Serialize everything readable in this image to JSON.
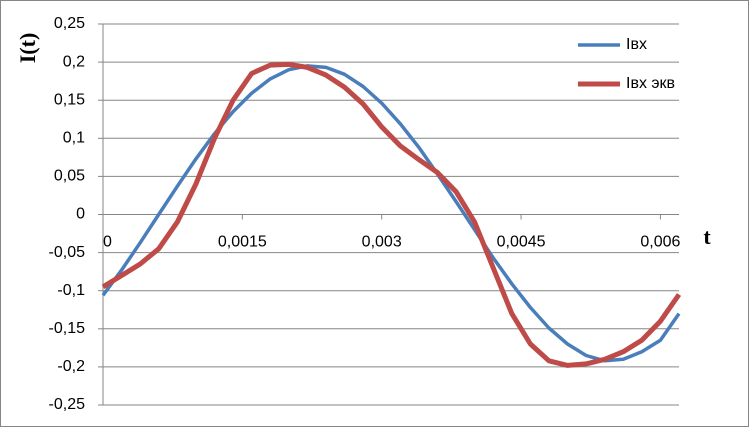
{
  "chart_data": {
    "type": "line",
    "y_label": "I(t)",
    "x_label": "t",
    "x": [
      0,
      0.0002,
      0.0004,
      0.0006,
      0.0008,
      0.001,
      0.0012,
      0.0014,
      0.0016,
      0.0018,
      0.002,
      0.0022,
      0.0024,
      0.0026,
      0.0028,
      0.003,
      0.0032,
      0.0034,
      0.0036,
      0.0038,
      0.004,
      0.0042,
      0.0044,
      0.0046,
      0.0048,
      0.005,
      0.0052,
      0.0054,
      0.0056,
      0.0058,
      0.006,
      0.0062
    ],
    "series": [
      {
        "name": "Iвх",
        "color": "#4a7ebb",
        "values": [
          -0.106,
          -0.073,
          -0.037,
          0,
          0.037,
          0.073,
          0.106,
          0.135,
          0.159,
          0.178,
          0.19,
          0.195,
          0.193,
          0.184,
          0.168,
          0.146,
          0.119,
          0.088,
          0.053,
          0.017,
          -0.02,
          -0.057,
          -0.091,
          -0.122,
          -0.149,
          -0.17,
          -0.185,
          -0.192,
          -0.19,
          -0.18,
          -0.165,
          -0.13
        ]
      },
      {
        "name": "Iвх экв",
        "color": "#be4b48",
        "values": [
          -0.095,
          -0.08,
          -0.065,
          -0.045,
          -0.01,
          0.04,
          0.1,
          0.15,
          0.185,
          0.196,
          0.197,
          0.193,
          0.183,
          0.167,
          0.145,
          0.115,
          0.09,
          0.072,
          0.055,
          0.03,
          -0.01,
          -0.07,
          -0.13,
          -0.17,
          -0.192,
          -0.198,
          -0.196,
          -0.19,
          -0.18,
          -0.165,
          -0.14,
          -0.105
        ]
      }
    ],
    "xlim": [
      0,
      0.0062
    ],
    "xticks": [
      0,
      {
        "value": 0.0015,
        "label": "0,0015"
      },
      {
        "value": 0.003,
        "label": "0,003"
      },
      {
        "value": 0.0045,
        "label": "0,0045"
      },
      {
        "value": 0.006,
        "label": "0,006"
      }
    ],
    "ylim": [
      -0.25,
      0.25
    ],
    "yticks": [
      {
        "value": -0.25,
        "label": "-0,25"
      },
      {
        "value": -0.2,
        "label": "-0,2"
      },
      {
        "value": -0.15,
        "label": "-0,15"
      },
      {
        "value": -0.1,
        "label": "-0,1"
      },
      {
        "value": -0.05,
        "label": "-0,05"
      },
      0,
      {
        "value": 0.05,
        "label": "0,05"
      },
      {
        "value": 0.1,
        "label": "0,1"
      },
      {
        "value": 0.15,
        "label": "0,15"
      },
      {
        "value": 0.2,
        "label": "0,2"
      },
      {
        "value": 0.25,
        "label": "0,25"
      }
    ],
    "grid": true,
    "legend": "top-right"
  }
}
